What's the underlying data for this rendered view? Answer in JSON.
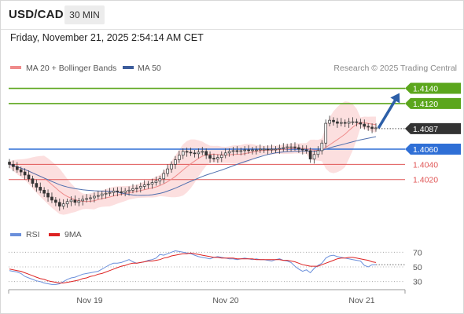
{
  "header": {
    "pair": "USD/CAD",
    "timeframe": "30 MIN",
    "datetime": "Friday, November 21, 2025 2:54:14 AM CET"
  },
  "legend": {
    "ma20_label": "MA 20 + Bollinger Bands",
    "ma50_label": "MA 50",
    "copyright": "Research © 2025 Trading Central",
    "rsi_label": "RSI",
    "ma9_label": "9MA"
  },
  "colors": {
    "ma20": "#ef8b8b",
    "band": "#fcd9d9",
    "ma50": "#4f6fae",
    "green": "#5ba61c",
    "blue": "#2f6fd6",
    "red": "#e05656",
    "last": "#333333",
    "arrow": "#2d5fa8",
    "rsi": "#6a8fdb",
    "ma9": "#dd2222"
  },
  "chart_data": [
    {
      "type": "candlestick",
      "instrument": "USD/CAD",
      "timeframe": "30 MIN",
      "x_labels": [
        "Nov 19",
        "Nov 20",
        "Nov 21"
      ],
      "ylim": [
        1.3965,
        1.4155
      ],
      "closes": [
        1.404,
        1.4037,
        1.4033,
        1.403,
        1.4026,
        1.4021,
        1.4015,
        1.401,
        1.4006,
        1.4002,
        1.3997,
        1.3993,
        1.399,
        1.3985,
        1.3988,
        1.3991,
        1.3993,
        1.399,
        1.3992,
        1.3994,
        1.3995,
        1.3996,
        1.3998,
        1.3999,
        1.4001,
        1.4002,
        1.4003,
        1.4005,
        1.4004,
        1.4003,
        1.4005,
        1.4006,
        1.4008,
        1.4009,
        1.4011,
        1.4013,
        1.4014,
        1.4016,
        1.4018,
        1.4021,
        1.4028,
        1.4034,
        1.404,
        1.4046,
        1.4052,
        1.4057,
        1.4056,
        1.4055,
        1.4054,
        1.4056,
        1.4057,
        1.4052,
        1.4048,
        1.4047,
        1.4049,
        1.4052,
        1.4055,
        1.4057,
        1.4058,
        1.4057,
        1.4058,
        1.4059,
        1.4058,
        1.4059,
        1.4059,
        1.406,
        1.406,
        1.4059,
        1.406,
        1.406,
        1.4061,
        1.4062,
        1.4063,
        1.4063,
        1.4062,
        1.406,
        1.4059,
        1.4058,
        1.4047,
        1.4053,
        1.4058,
        1.4068,
        1.4094,
        1.4098,
        1.4096,
        1.4094,
        1.4095,
        1.4094,
        1.4096,
        1.4096,
        1.4095,
        1.4093,
        1.409,
        1.4089,
        1.4087,
        1.4088
      ],
      "price_levels": [
        {
          "label": "1.4140",
          "value": 1.414,
          "color": "green"
        },
        {
          "label": "1.4120",
          "value": 1.412,
          "color": "green"
        },
        {
          "label": "1.4087",
          "value": 1.4087,
          "color": "last"
        },
        {
          "label": "1.4060",
          "value": 1.406,
          "color": "blue"
        },
        {
          "label": "1.4040",
          "value": 1.404,
          "color": "red"
        },
        {
          "label": "1.4020",
          "value": 1.402,
          "color": "red"
        }
      ],
      "arrow": {
        "from": 1.4087,
        "to": 1.414
      }
    },
    {
      "type": "line",
      "panel": "RSI",
      "y_ticks": [
        70,
        50,
        30
      ],
      "ylim": [
        20,
        80
      ],
      "rsi": [
        45,
        44,
        43,
        41,
        37,
        35,
        33,
        31,
        30,
        28,
        27,
        26,
        26,
        27,
        30,
        33,
        35,
        36,
        38,
        40,
        41,
        42,
        43,
        44,
        47,
        50,
        53,
        55,
        55,
        56,
        58,
        60,
        57,
        55,
        56,
        57,
        59,
        60,
        62,
        67,
        66,
        68,
        70,
        72,
        71,
        70,
        69,
        68,
        66,
        64,
        63,
        62,
        61,
        63,
        64,
        63,
        62,
        61,
        61,
        60,
        61,
        62,
        61,
        60,
        61,
        60,
        60,
        59,
        58,
        60,
        61,
        59,
        58,
        56,
        51,
        47,
        44,
        46,
        42,
        48,
        52,
        55,
        62,
        65,
        66,
        64,
        63,
        62,
        61,
        60,
        59,
        58,
        52,
        50,
        53,
        53
      ],
      "ma9": [
        47,
        46,
        45,
        44,
        42,
        40,
        38,
        36,
        34,
        33,
        31,
        30,
        29,
        28,
        28,
        29,
        30,
        31,
        32,
        34,
        35,
        37,
        38,
        40,
        41,
        43,
        45,
        47,
        49,
        51,
        52,
        54,
        55,
        55,
        56,
        57,
        58,
        58,
        59,
        60,
        62,
        63,
        65,
        66,
        67,
        68,
        68,
        69,
        68,
        67,
        66,
        65,
        64,
        63,
        63,
        62,
        62,
        62,
        62,
        61,
        61,
        61,
        61,
        61,
        60,
        60,
        60,
        60,
        60,
        60,
        60,
        59,
        59,
        58,
        57,
        55,
        53,
        52,
        51,
        51,
        51,
        53,
        55,
        57,
        59,
        61,
        62,
        62,
        63,
        63,
        62,
        61,
        60,
        59,
        57,
        56
      ]
    }
  ]
}
